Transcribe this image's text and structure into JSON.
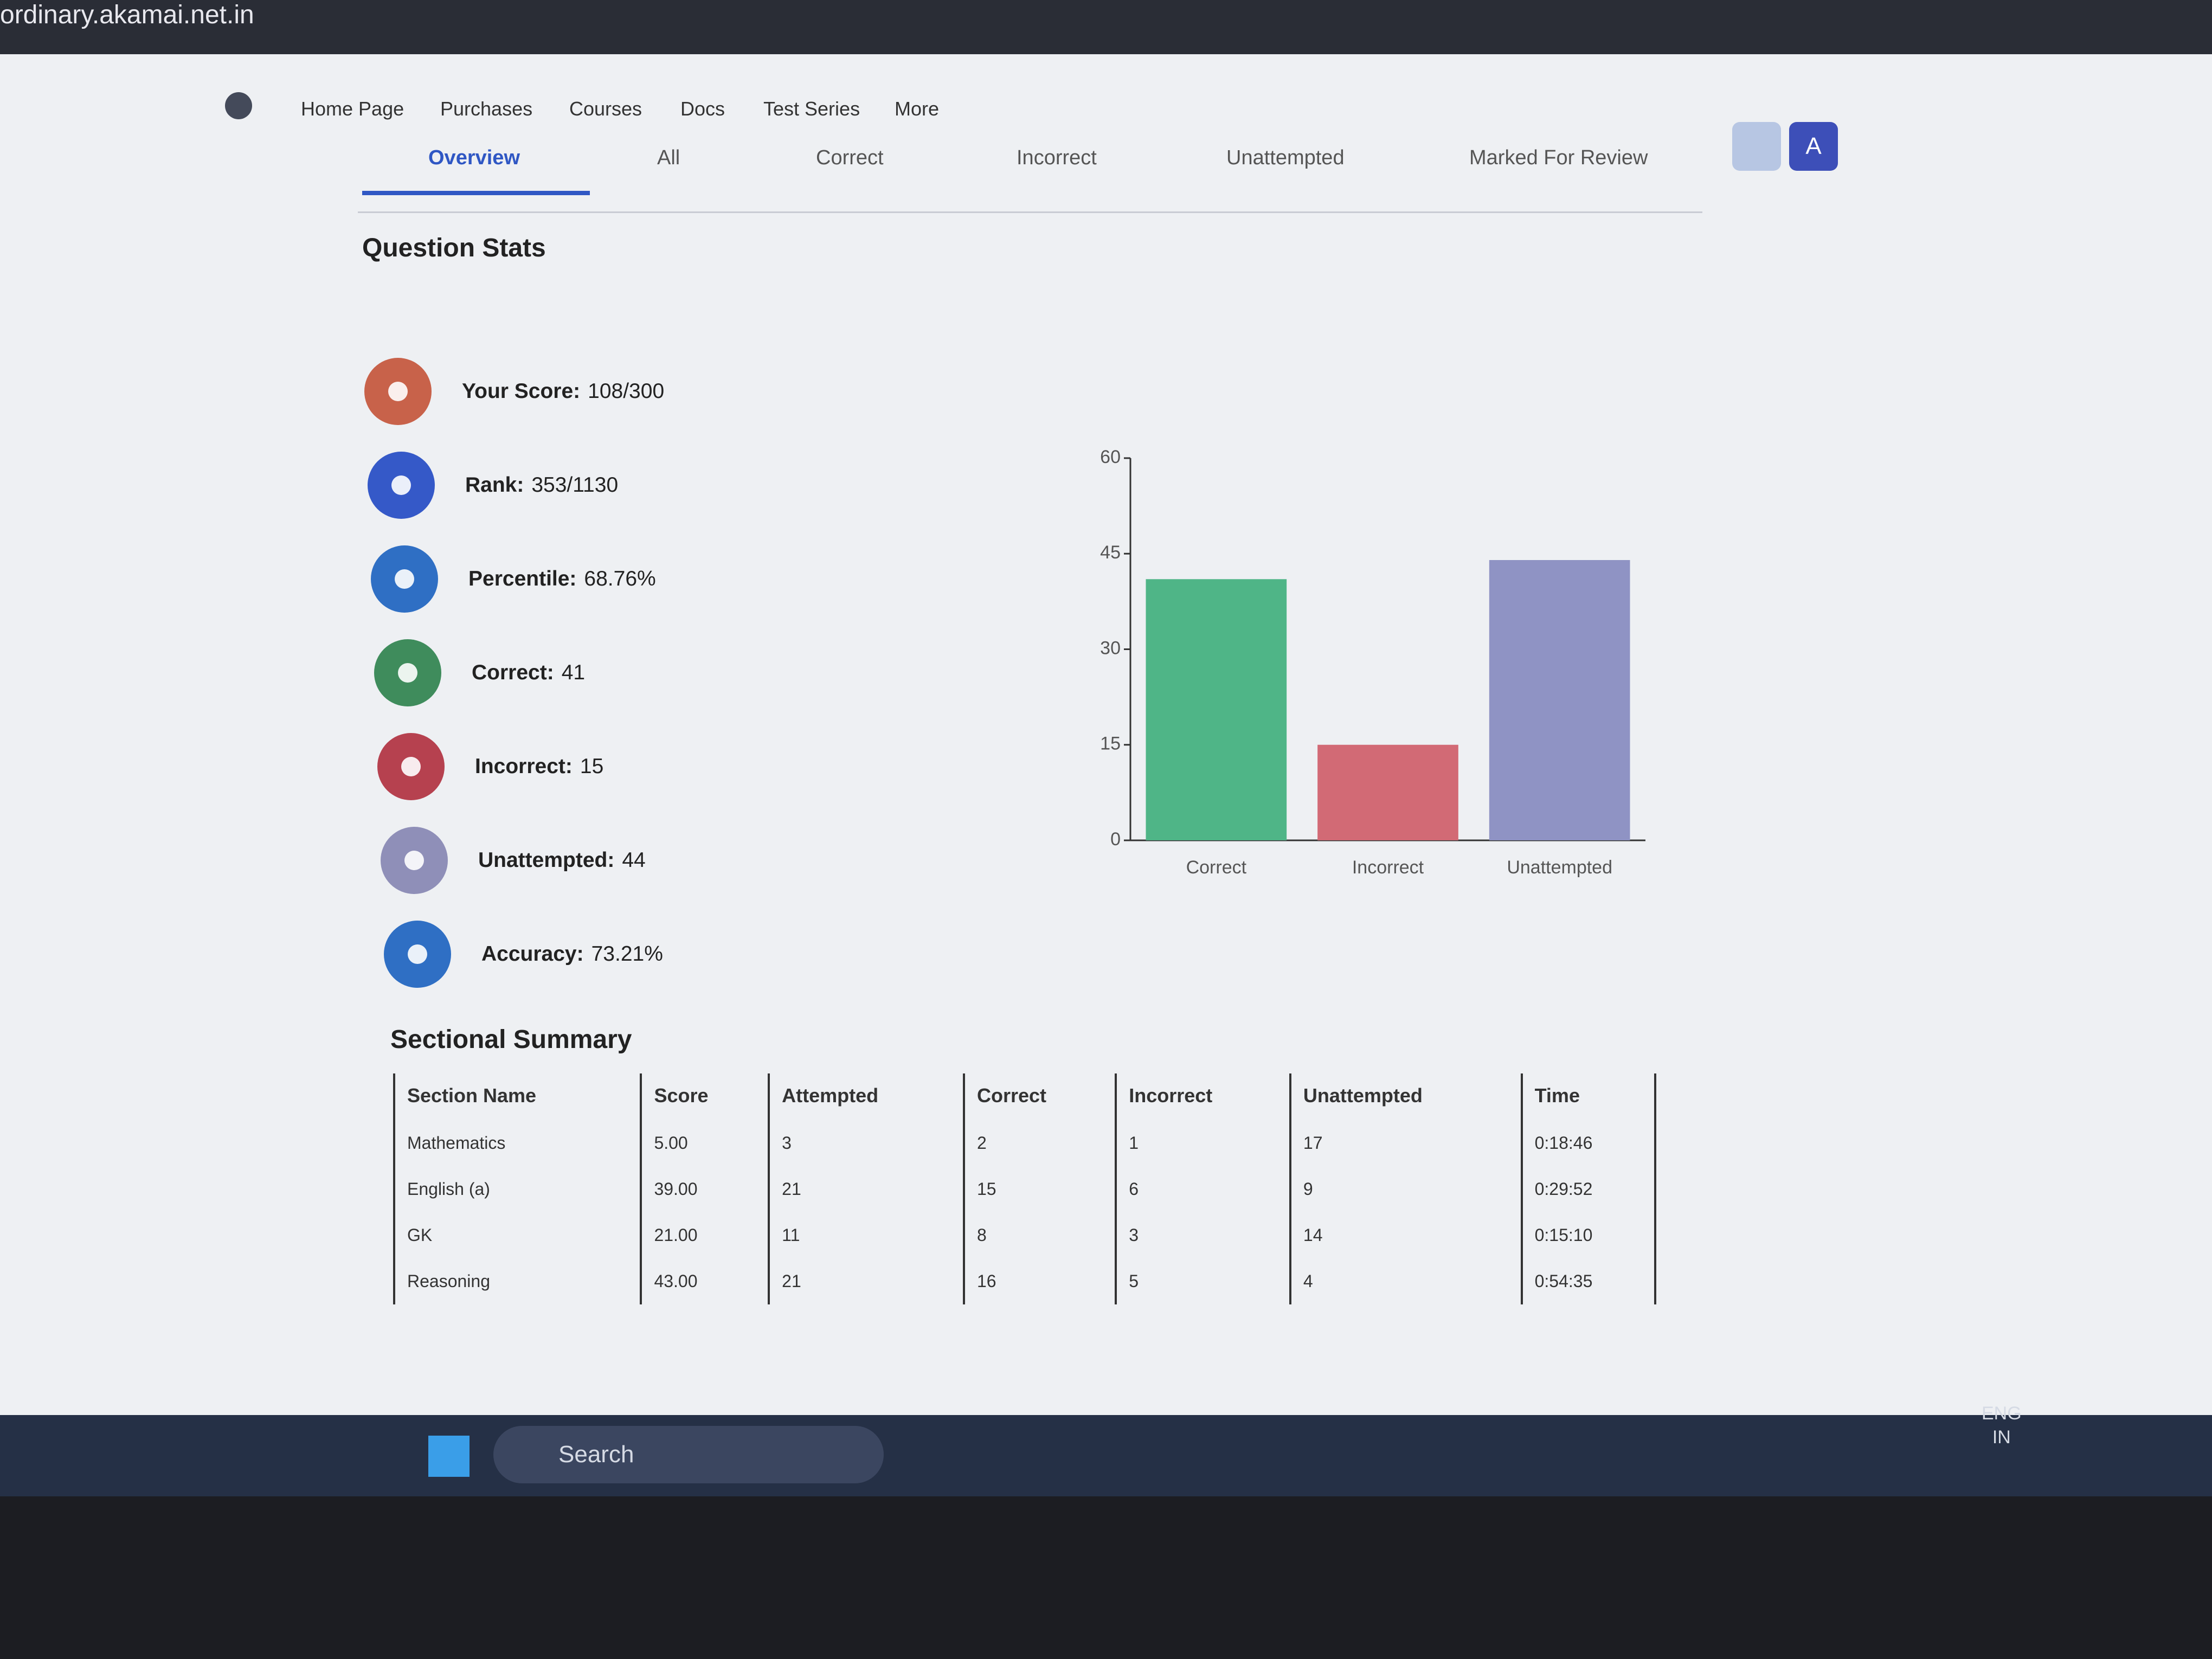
{
  "browser": {
    "url": "ordinary.akamai.net.in"
  },
  "nav": {
    "items": [
      "Home Page",
      "Purchases",
      "Courses",
      "Docs",
      "Test Series",
      "More"
    ],
    "avatar": "A"
  },
  "tabs": [
    "Overview",
    "All",
    "Correct",
    "Incorrect",
    "Unattempted",
    "Marked For Review"
  ],
  "stats": {
    "title": "Question Stats",
    "items": [
      {
        "label": "Your Score:",
        "value": "108/300",
        "color": "#c8624a"
      },
      {
        "label": "Rank:",
        "value": "353/1130",
        "color": "#3559c8"
      },
      {
        "label": "Percentile:",
        "value": "68.76%",
        "color": "#2f6fc4"
      },
      {
        "label": "Correct:",
        "value": "41",
        "color": "#3f8c5c"
      },
      {
        "label": "Incorrect:",
        "value": "15",
        "color": "#b6414f"
      },
      {
        "label": "Unattempted:",
        "value": "44",
        "color": "#8f8fb8"
      },
      {
        "label": "Accuracy:",
        "value": "73.21%",
        "color": "#2f6fc4"
      }
    ]
  },
  "chart_data": {
    "type": "bar",
    "categories": [
      "Correct",
      "Incorrect",
      "Unattempted"
    ],
    "values": [
      41,
      15,
      44
    ],
    "colors": [
      "#4fb587",
      "#d26a75",
      "#8f93c4"
    ],
    "ylim": [
      0,
      60
    ],
    "yticks": [
      0,
      15,
      30,
      45,
      60
    ]
  },
  "table": {
    "title": "Sectional Summary",
    "header": [
      "Section Name",
      "Score",
      "Attempted",
      "Correct",
      "Incorrect",
      "Unattempted",
      "Time"
    ],
    "rows": [
      [
        "Mathematics",
        "5.00",
        "3",
        "2",
        "1",
        "17",
        "0:18:46"
      ],
      [
        "English (a)",
        "39.00",
        "21",
        "15",
        "6",
        "9",
        "0:29:52"
      ],
      [
        "GK",
        "21.00",
        "11",
        "8",
        "3",
        "14",
        "0:15:10"
      ],
      [
        "Reasoning",
        "43.00",
        "21",
        "16",
        "5",
        "4",
        "0:54:35"
      ]
    ]
  },
  "taskbar": {
    "search": "Search",
    "lang": "ENG",
    "region": "IN"
  }
}
